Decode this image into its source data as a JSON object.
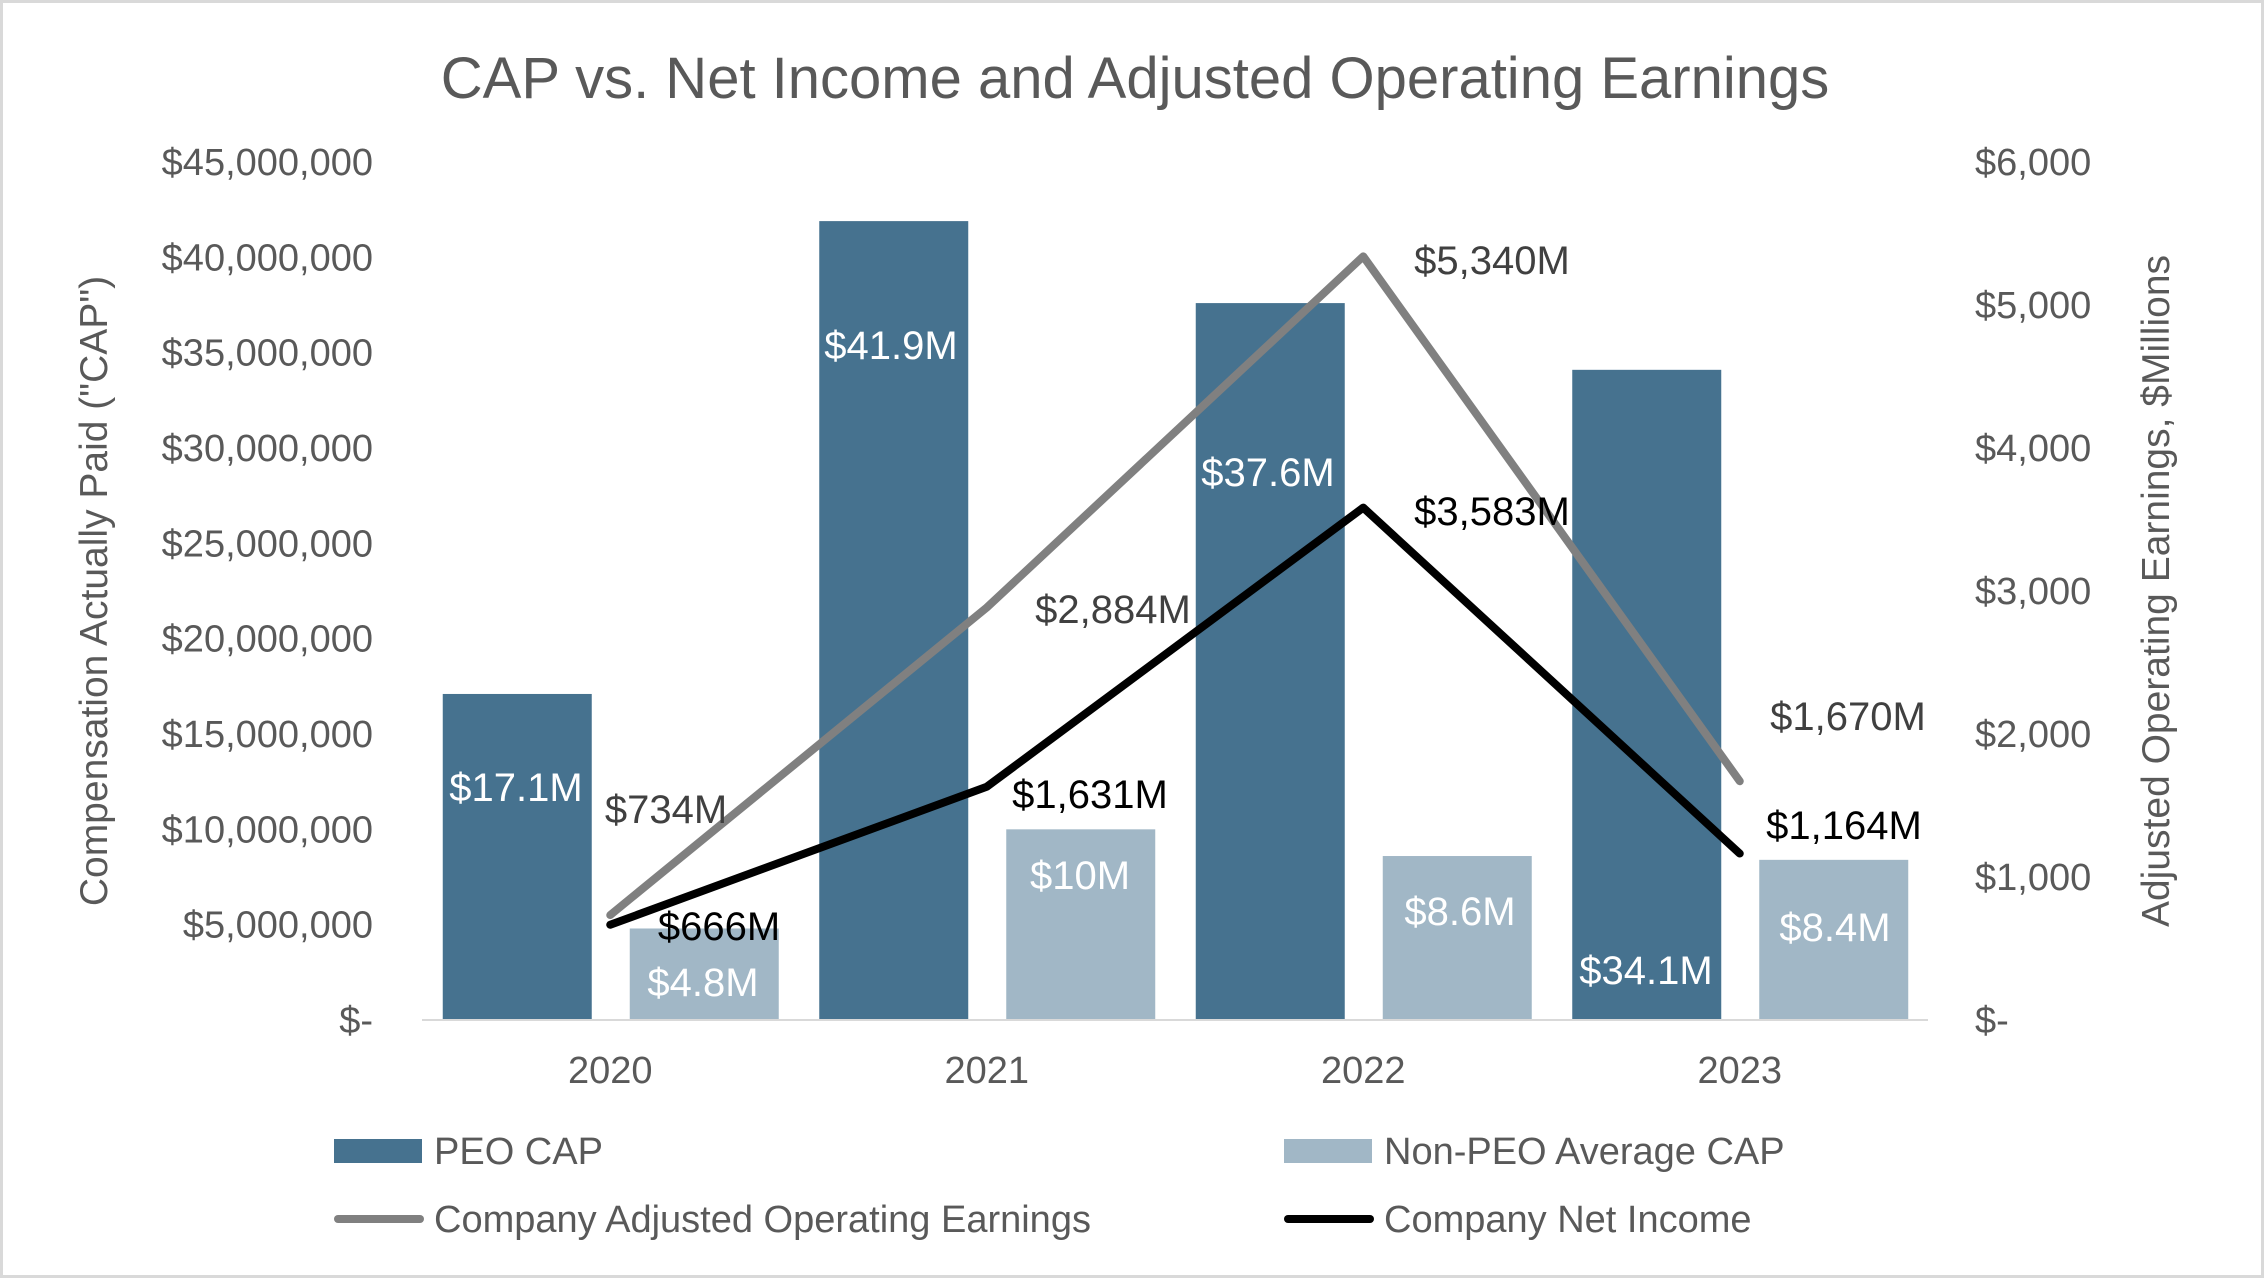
{
  "chart_data": {
    "type": "bar",
    "title": "CAP vs. Net Income and Adjusted Operating Earnings",
    "categories": [
      "2020",
      "2021",
      "2022",
      "2023"
    ],
    "ylabel_left": "Compensation Actually Paid (\"CAP\")",
    "ylabel_right": "Adjusted Operating Earnings, $Millions",
    "ylim_left": [
      0,
      45000000
    ],
    "ylim_right": [
      0,
      6000
    ],
    "left_ticks": [
      "$-",
      "$5,000,000",
      "$10,000,000",
      "$15,000,000",
      "$20,000,000",
      "$25,000,000",
      "$30,000,000",
      "$35,000,000",
      "$40,000,000",
      "$45,000,000"
    ],
    "right_ticks": [
      "$-",
      "$1,000",
      "$2,000",
      "$3,000",
      "$4,000",
      "$5,000",
      "$6,000"
    ],
    "grid": false,
    "legend_position": "bottom",
    "series": [
      {
        "name": "PEO CAP",
        "type": "bar",
        "axis": "left",
        "color": "#46728f",
        "values": [
          17100000,
          41900000,
          37600000,
          34100000
        ],
        "labels": [
          "$17.1M",
          "$41.9M",
          "$37.6M",
          "$34.1M"
        ]
      },
      {
        "name": "Non-PEO Average CAP",
        "type": "bar",
        "axis": "left",
        "color": "#a1b7c6",
        "values": [
          4800000,
          10000000,
          8600000,
          8400000
        ],
        "labels": [
          "$4.8M",
          "$10M",
          "$8.6M",
          "$8.4M"
        ]
      },
      {
        "name": "Company Adjusted Operating Earnings",
        "type": "line",
        "axis": "right",
        "color": "#808080",
        "values": [
          734,
          2884,
          5340,
          1670
        ],
        "labels": [
          "$734M",
          "$2,884M",
          "$5,340M",
          "$1,670M"
        ]
      },
      {
        "name": "Company Net Income",
        "type": "line",
        "axis": "right",
        "color": "#000000",
        "values": [
          666,
          1631,
          3583,
          1164
        ],
        "labels": [
          "$666M",
          "$1,631M",
          "$3,583M",
          "$1,164M"
        ]
      }
    ]
  }
}
